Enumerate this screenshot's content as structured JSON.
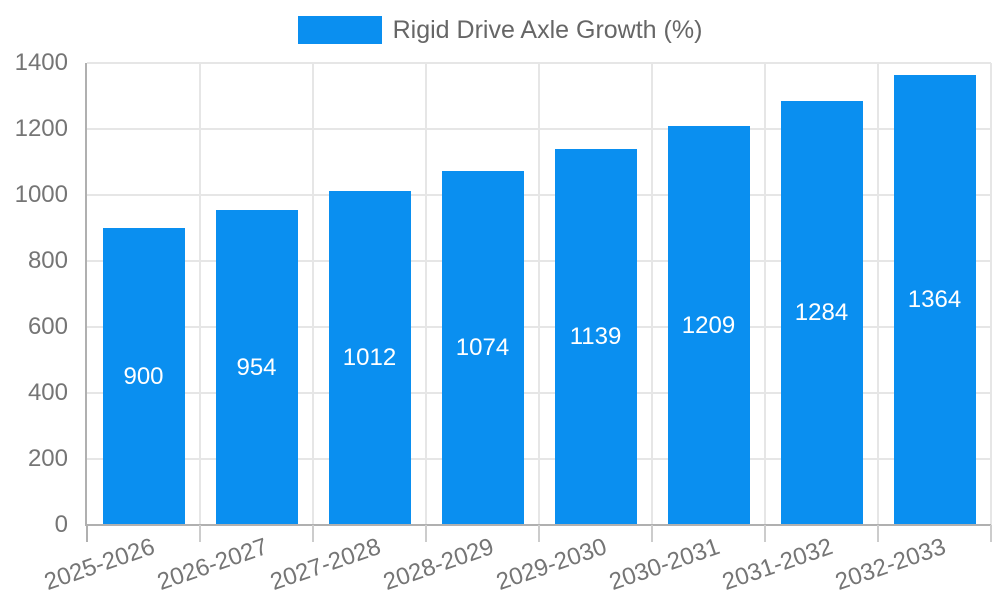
{
  "legend": {
    "label": "Rigid Drive Axle Growth (%)"
  },
  "chart_data": {
    "type": "bar",
    "title": "Rigid Drive Axle Growth (%)",
    "categories": [
      "2025-2026",
      "2026-2027",
      "2027-2028",
      "2028-2029",
      "2029-2030",
      "2030-2031",
      "2031-2032",
      "2032-2033"
    ],
    "values": [
      900,
      954,
      1012,
      1074,
      1139,
      1209,
      1284,
      1364
    ],
    "series": [
      {
        "name": "Rigid Drive Axle Growth (%)",
        "values": [
          900,
          954,
          1012,
          1074,
          1139,
          1209,
          1284,
          1364
        ]
      }
    ],
    "xlabel": "",
    "ylabel": "",
    "ylim": [
      0,
      1400
    ],
    "ytick_step": 200,
    "yticks": [
      0,
      200,
      400,
      600,
      800,
      1000,
      1200,
      1400
    ],
    "grid": "both",
    "legend_position": "top-center",
    "value_labels": "inside-center",
    "x_label_rotation_deg": -19,
    "colors": {
      "bar": "#0a8ff0",
      "bar_label": "#ffffff",
      "axis_text": "#757575",
      "legend_text": "#666666",
      "gridline": "#e6e6e6",
      "axis_line": "#b0b0b0",
      "tick": "#cccccc",
      "background": "#ffffff"
    }
  }
}
